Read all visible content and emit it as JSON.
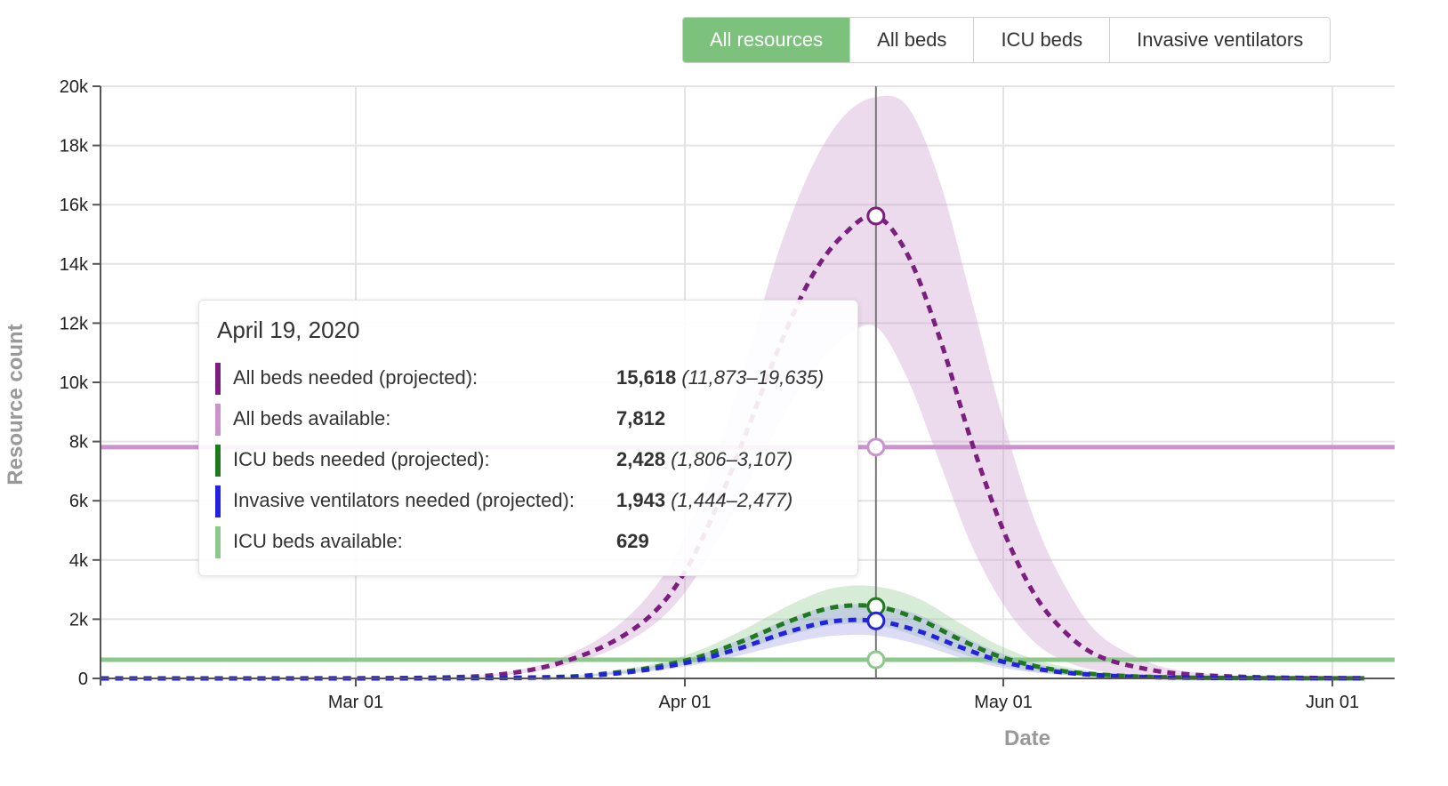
{
  "toolbar": {
    "buttons": [
      {
        "label": "All resources",
        "active": true
      },
      {
        "label": "All beds",
        "active": false
      },
      {
        "label": "ICU beds",
        "active": false
      },
      {
        "label": "Invasive ventilators",
        "active": false
      }
    ]
  },
  "tooltip": {
    "date": "April 19, 2020",
    "rows": [
      {
        "label": "All beds needed (projected):",
        "value": "15,618",
        "range": "(11,873–19,635)",
        "color": "#7b1f7e"
      },
      {
        "label": "All beds available:",
        "value": "7,812",
        "range": "",
        "color": "#c994cc"
      },
      {
        "label": "ICU beds needed (projected):",
        "value": "2,428",
        "range": "(1,806–3,107)",
        "color": "#1f7a1f"
      },
      {
        "label": "Invasive ventilators needed (projected):",
        "value": "1,943",
        "range": "(1,444–2,477)",
        "color": "#2222e0"
      },
      {
        "label": "ICU beds available:",
        "value": "629",
        "range": "",
        "color": "#8cc88c"
      }
    ]
  },
  "chart_data": {
    "type": "line",
    "xlabel": "Date",
    "ylabel": "Resource count",
    "xlim": [
      "2020-02-06",
      "2020-06-04"
    ],
    "ylim": [
      0,
      20000
    ],
    "x_ticks": [
      {
        "date": "2020-03-01",
        "label": "Mar 01"
      },
      {
        "date": "2020-04-01",
        "label": "Apr 01"
      },
      {
        "date": "2020-05-01",
        "label": "May 01"
      },
      {
        "date": "2020-06-01",
        "label": "Jun 01"
      }
    ],
    "y_ticks": [
      {
        "value": 0,
        "label": "0"
      },
      {
        "value": 2000,
        "label": "2k"
      },
      {
        "value": 4000,
        "label": "4k"
      },
      {
        "value": 6000,
        "label": "6k"
      },
      {
        "value": 8000,
        "label": "8k"
      },
      {
        "value": 10000,
        "label": "10k"
      },
      {
        "value": 12000,
        "label": "12k"
      },
      {
        "value": 14000,
        "label": "14k"
      },
      {
        "value": 16000,
        "label": "16k"
      },
      {
        "value": 18000,
        "label": "18k"
      },
      {
        "value": 20000,
        "label": "20k"
      }
    ],
    "grid": true,
    "hover_date": "2020-04-19",
    "series": [
      {
        "name": "All beds needed (projected)",
        "style": "dashed",
        "color": "#7b1f7e",
        "band_color": "#c994cc",
        "points": [
          {
            "x": "2020-02-06",
            "y": 0,
            "lo": 0,
            "hi": 0
          },
          {
            "x": "2020-03-01",
            "y": 5,
            "lo": 3,
            "hi": 8
          },
          {
            "x": "2020-03-10",
            "y": 40,
            "lo": 30,
            "hi": 55
          },
          {
            "x": "2020-03-15",
            "y": 150,
            "lo": 110,
            "hi": 200
          },
          {
            "x": "2020-03-20",
            "y": 500,
            "lo": 380,
            "hi": 650
          },
          {
            "x": "2020-03-25",
            "y": 1200,
            "lo": 950,
            "hi": 1600
          },
          {
            "x": "2020-03-29",
            "y": 2200,
            "lo": 1800,
            "hi": 3000
          },
          {
            "x": "2020-04-01",
            "y": 3600,
            "lo": 2900,
            "hi": 4800
          },
          {
            "x": "2020-04-04",
            "y": 5800,
            "lo": 4600,
            "hi": 7600
          },
          {
            "x": "2020-04-07",
            "y": 8500,
            "lo": 6600,
            "hi": 11000
          },
          {
            "x": "2020-04-10",
            "y": 11300,
            "lo": 8700,
            "hi": 14600
          },
          {
            "x": "2020-04-13",
            "y": 13600,
            "lo": 10400,
            "hi": 17300
          },
          {
            "x": "2020-04-16",
            "y": 15000,
            "lo": 11500,
            "hi": 19000
          },
          {
            "x": "2020-04-19",
            "y": 15618,
            "lo": 11873,
            "hi": 19635
          },
          {
            "x": "2020-04-22",
            "y": 14300,
            "lo": 10100,
            "hi": 19300
          },
          {
            "x": "2020-04-25",
            "y": 11500,
            "lo": 7300,
            "hi": 16800
          },
          {
            "x": "2020-04-28",
            "y": 8000,
            "lo": 4500,
            "hi": 12800
          },
          {
            "x": "2020-05-01",
            "y": 5000,
            "lo": 2500,
            "hi": 8700
          },
          {
            "x": "2020-05-04",
            "y": 2800,
            "lo": 1200,
            "hi": 5300
          },
          {
            "x": "2020-05-07",
            "y": 1500,
            "lo": 550,
            "hi": 3000
          },
          {
            "x": "2020-05-10",
            "y": 750,
            "lo": 250,
            "hi": 1500
          },
          {
            "x": "2020-05-14",
            "y": 350,
            "lo": 90,
            "hi": 650
          },
          {
            "x": "2020-05-18",
            "y": 150,
            "lo": 30,
            "hi": 250
          },
          {
            "x": "2020-05-25",
            "y": 40,
            "lo": 5,
            "hi": 60
          },
          {
            "x": "2020-06-04",
            "y": 5,
            "lo": 0,
            "hi": 10
          }
        ]
      },
      {
        "name": "ICU beds needed (projected)",
        "style": "dashed",
        "color": "#1f7a1f",
        "band_color": "#8cc88c",
        "points": [
          {
            "x": "2020-02-06",
            "y": 0,
            "lo": 0,
            "hi": 0
          },
          {
            "x": "2020-03-15",
            "y": 20,
            "lo": 15,
            "hi": 30
          },
          {
            "x": "2020-03-25",
            "y": 180,
            "lo": 140,
            "hi": 240
          },
          {
            "x": "2020-04-01",
            "y": 600,
            "lo": 470,
            "hi": 780
          },
          {
            "x": "2020-04-06",
            "y": 1200,
            "lo": 930,
            "hi": 1550
          },
          {
            "x": "2020-04-11",
            "y": 1950,
            "lo": 1470,
            "hi": 2500
          },
          {
            "x": "2020-04-15",
            "y": 2400,
            "lo": 1800,
            "hi": 3050
          },
          {
            "x": "2020-04-19",
            "y": 2428,
            "lo": 1806,
            "hi": 3107
          },
          {
            "x": "2020-04-23",
            "y": 2000,
            "lo": 1400,
            "hi": 2700
          },
          {
            "x": "2020-04-27",
            "y": 1300,
            "lo": 850,
            "hi": 1850
          },
          {
            "x": "2020-05-01",
            "y": 700,
            "lo": 420,
            "hi": 1050
          },
          {
            "x": "2020-05-06",
            "y": 280,
            "lo": 150,
            "hi": 450
          },
          {
            "x": "2020-05-12",
            "y": 90,
            "lo": 40,
            "hi": 150
          },
          {
            "x": "2020-05-20",
            "y": 20,
            "lo": 8,
            "hi": 35
          },
          {
            "x": "2020-06-04",
            "y": 2,
            "lo": 0,
            "hi": 4
          }
        ]
      },
      {
        "name": "Invasive ventilators needed (projected)",
        "style": "dashed",
        "color": "#2222e0",
        "band_color": "#9a9ae8",
        "points": [
          {
            "x": "2020-02-06",
            "y": 0,
            "lo": 0,
            "hi": 0
          },
          {
            "x": "2020-03-15",
            "y": 15,
            "lo": 10,
            "hi": 22
          },
          {
            "x": "2020-03-25",
            "y": 150,
            "lo": 115,
            "hi": 195
          },
          {
            "x": "2020-04-01",
            "y": 520,
            "lo": 400,
            "hi": 660
          },
          {
            "x": "2020-04-06",
            "y": 1000,
            "lo": 760,
            "hi": 1280
          },
          {
            "x": "2020-04-11",
            "y": 1600,
            "lo": 1200,
            "hi": 2050
          },
          {
            "x": "2020-04-15",
            "y": 1930,
            "lo": 1440,
            "hi": 2450
          },
          {
            "x": "2020-04-19",
            "y": 1943,
            "lo": 1444,
            "hi": 2477
          },
          {
            "x": "2020-04-23",
            "y": 1600,
            "lo": 1150,
            "hi": 2150
          },
          {
            "x": "2020-04-27",
            "y": 1050,
            "lo": 700,
            "hi": 1450
          },
          {
            "x": "2020-05-01",
            "y": 560,
            "lo": 350,
            "hi": 830
          },
          {
            "x": "2020-05-06",
            "y": 230,
            "lo": 130,
            "hi": 360
          },
          {
            "x": "2020-05-12",
            "y": 75,
            "lo": 35,
            "hi": 120
          },
          {
            "x": "2020-05-20",
            "y": 18,
            "lo": 7,
            "hi": 30
          },
          {
            "x": "2020-06-04",
            "y": 2,
            "lo": 0,
            "hi": 4
          }
        ]
      }
    ],
    "reference_lines": [
      {
        "name": "All beds available",
        "value": 7812,
        "color": "#c994cc"
      },
      {
        "name": "ICU beds available",
        "value": 629,
        "color": "#8cc88c"
      }
    ]
  }
}
